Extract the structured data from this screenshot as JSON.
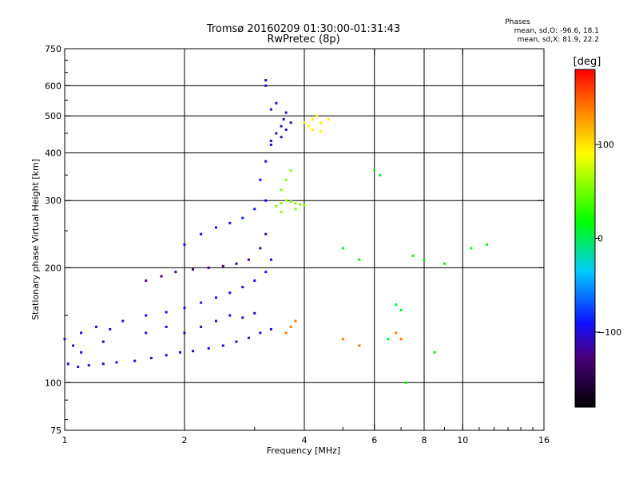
{
  "chart_data": {
    "type": "scatter",
    "title": "Tromsø 20160209 01:30:00-01:31:43",
    "subtitle": "RwPretec (8p)",
    "xlabel": "Frequency [MHz]",
    "ylabel": "Stationary phase Virtual Height [km]",
    "x_scale": "log",
    "y_scale": "log",
    "xlim": [
      1,
      16
    ],
    "ylim": [
      75,
      750
    ],
    "x_ticks": [
      1,
      2,
      4,
      6,
      8,
      10,
      16
    ],
    "x_tick_labels": [
      "1",
      "2",
      "4",
      "6",
      "8",
      "10",
      "16"
    ],
    "y_ticks": [
      75,
      100,
      200,
      300,
      400,
      500,
      600,
      750
    ],
    "y_tick_labels": [
      "75",
      "100",
      "200",
      "300",
      "400",
      "500",
      "600",
      "750"
    ],
    "x_grid": [
      2,
      4,
      6,
      8,
      10
    ],
    "y_grid": [
      100,
      200,
      300,
      400,
      500,
      600
    ],
    "grid": true,
    "legend": {
      "title": "Phases",
      "lines": [
        "mean, sd,O: -96.6, 18.1",
        "mean, sd,X: 81.9, 22.2"
      ],
      "placement": "top-right"
    },
    "colorbar": {
      "label": "[deg]",
      "range": [
        -180,
        180
      ],
      "ticks": [
        -100,
        0,
        100
      ],
      "tick_labels": [
        "−100",
        "0",
        "100"
      ],
      "placement": "right"
    },
    "clusters": [
      {
        "name": "blue-trace-low",
        "phase": -100,
        "points": [
          [
            1.02,
            112
          ],
          [
            1.08,
            110
          ],
          [
            1.15,
            111
          ],
          [
            1.25,
            112
          ],
          [
            1.35,
            113
          ],
          [
            1.5,
            114
          ],
          [
            1.65,
            116
          ],
          [
            1.8,
            118
          ],
          [
            1.95,
            120
          ],
          [
            2.1,
            121
          ],
          [
            2.3,
            123
          ],
          [
            2.5,
            125
          ],
          [
            2.7,
            128
          ],
          [
            2.9,
            131
          ],
          [
            3.1,
            135
          ],
          [
            3.3,
            138
          ]
        ]
      },
      {
        "name": "blue-base-scatter",
        "phase": -105,
        "points": [
          [
            1.0,
            130
          ],
          [
            1.05,
            125
          ],
          [
            1.1,
            135
          ],
          [
            1.2,
            140
          ],
          [
            1.3,
            138
          ],
          [
            1.4,
            145
          ],
          [
            1.1,
            120
          ],
          [
            1.25,
            128
          ],
          [
            1.6,
            135
          ],
          [
            1.8,
            140
          ],
          [
            2.0,
            135
          ],
          [
            2.2,
            140
          ],
          [
            2.4,
            145
          ],
          [
            2.6,
            150
          ],
          [
            2.8,
            148
          ],
          [
            3.0,
            152
          ]
        ]
      },
      {
        "name": "blue-trace-mid",
        "phase": -95,
        "points": [
          [
            1.6,
            150
          ],
          [
            1.8,
            153
          ],
          [
            2.0,
            157
          ],
          [
            2.2,
            162
          ],
          [
            2.4,
            167
          ],
          [
            2.6,
            172
          ],
          [
            2.8,
            178
          ],
          [
            3.0,
            185
          ],
          [
            3.2,
            195
          ],
          [
            3.3,
            210
          ]
        ]
      },
      {
        "name": "purple-trace",
        "phase": -125,
        "points": [
          [
            1.6,
            185
          ],
          [
            1.75,
            190
          ],
          [
            1.9,
            195
          ],
          [
            2.1,
            198
          ],
          [
            2.3,
            200
          ],
          [
            2.5,
            202
          ],
          [
            2.7,
            205
          ],
          [
            2.9,
            210
          ],
          [
            3.1,
            225
          ],
          [
            3.2,
            245
          ]
        ]
      },
      {
        "name": "blue-upper-band",
        "phase": -90,
        "points": [
          [
            2.0,
            230
          ],
          [
            2.2,
            245
          ],
          [
            2.4,
            255
          ],
          [
            2.6,
            262
          ],
          [
            2.8,
            270
          ],
          [
            3.0,
            285
          ],
          [
            3.2,
            300
          ],
          [
            3.1,
            340
          ],
          [
            3.2,
            380
          ],
          [
            3.3,
            420
          ]
        ]
      },
      {
        "name": "upper-f-layer",
        "phase": -110,
        "points": [
          [
            3.3,
            430
          ],
          [
            3.4,
            450
          ],
          [
            3.5,
            470
          ],
          [
            3.55,
            490
          ],
          [
            3.6,
            510
          ],
          [
            3.5,
            440
          ],
          [
            3.6,
            460
          ],
          [
            3.7,
            480
          ],
          [
            3.3,
            520
          ],
          [
            3.4,
            540
          ],
          [
            3.2,
            620
          ],
          [
            3.2,
            600
          ]
        ]
      },
      {
        "name": "x-mode-green",
        "phase": 55,
        "points": [
          [
            3.4,
            290
          ],
          [
            3.5,
            295
          ],
          [
            3.6,
            300
          ],
          [
            3.7,
            298
          ],
          [
            3.8,
            295
          ],
          [
            3.9,
            293
          ],
          [
            4.0,
            292
          ],
          [
            3.5,
            320
          ],
          [
            3.6,
            340
          ],
          [
            3.7,
            360
          ],
          [
            3.5,
            280
          ],
          [
            3.8,
            285
          ]
        ]
      },
      {
        "name": "x-mode-yellow-top",
        "phase": 95,
        "points": [
          [
            4.0,
            480
          ],
          [
            4.1,
            470
          ],
          [
            4.2,
            490
          ],
          [
            4.3,
            500
          ],
          [
            4.4,
            480
          ],
          [
            4.6,
            490
          ],
          [
            4.2,
            460
          ],
          [
            4.4,
            455
          ]
        ]
      },
      {
        "name": "high-freq-scatter",
        "phase": 10,
        "points": [
          [
            5.0,
            225
          ],
          [
            5.5,
            210
          ],
          [
            6.0,
            360
          ],
          [
            6.2,
            350
          ],
          [
            6.8,
            160
          ],
          [
            7.0,
            155
          ],
          [
            7.5,
            215
          ],
          [
            8.0,
            210
          ],
          [
            9.0,
            205
          ],
          [
            10.5,
            225
          ],
          [
            11.5,
            230
          ],
          [
            6.5,
            130
          ],
          [
            7.2,
            100
          ],
          [
            8.5,
            120
          ]
        ]
      },
      {
        "name": "orange-low",
        "phase": 140,
        "points": [
          [
            3.6,
            135
          ],
          [
            3.7,
            140
          ],
          [
            3.8,
            145
          ],
          [
            5.0,
            130
          ],
          [
            5.5,
            125
          ],
          [
            6.8,
            135
          ],
          [
            7.0,
            130
          ]
        ]
      }
    ]
  }
}
